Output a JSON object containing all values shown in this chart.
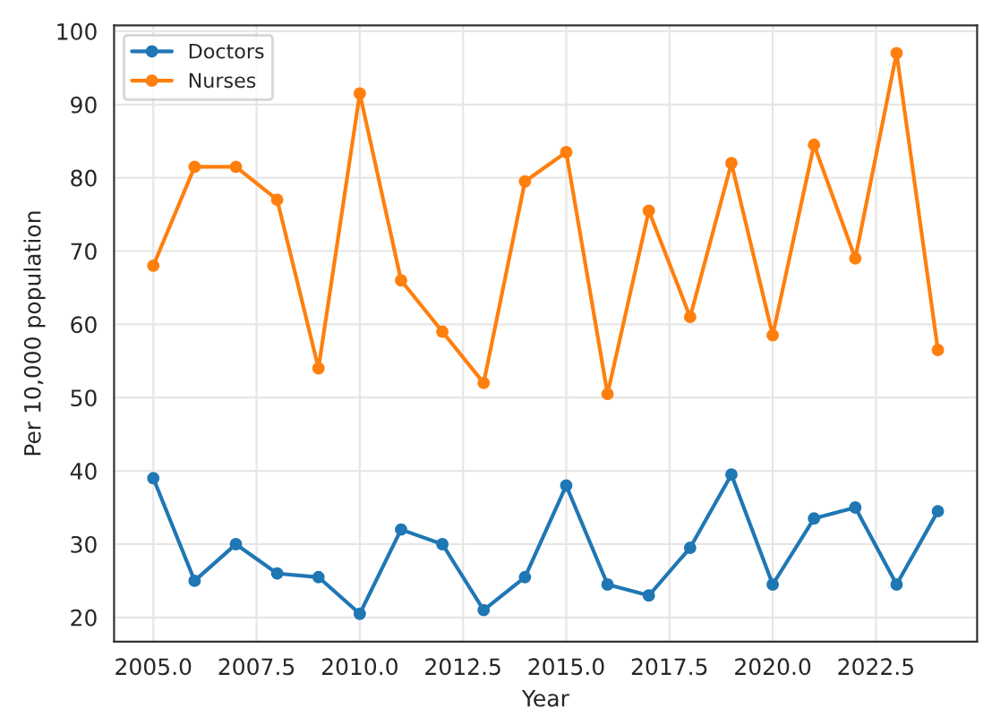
{
  "chart_data": {
    "type": "line",
    "xlabel": "Year",
    "ylabel": "Per 10,000 population",
    "x": [
      2005,
      2006,
      2007,
      2008,
      2009,
      2010,
      2011,
      2012,
      2013,
      2014,
      2015,
      2016,
      2017,
      2018,
      2019,
      2020,
      2021,
      2022,
      2023,
      2024
    ],
    "series": [
      {
        "name": "Doctors",
        "color": "#1f77b4",
        "values": [
          39,
          25,
          30,
          26,
          25.5,
          20.5,
          32,
          30,
          21,
          25.5,
          38,
          24.5,
          23,
          29.5,
          39.5,
          24.5,
          33.5,
          35,
          24.5,
          34.5
        ]
      },
      {
        "name": "Nurses",
        "color": "#ff7f0e",
        "values": [
          68,
          81.5,
          81.5,
          77,
          54,
          91.5,
          66,
          59,
          52,
          79.5,
          83.5,
          50.5,
          75.5,
          61,
          82,
          58.5,
          84.5,
          69,
          97,
          56.5
        ]
      }
    ],
    "xlim": [
      2004.05,
      2024.95
    ],
    "ylim": [
      16.7,
      100.8
    ],
    "xticks": [
      {
        "value": 2005,
        "label": "2005.0"
      },
      {
        "value": 2007.5,
        "label": "2007.5"
      },
      {
        "value": 2010,
        "label": "2010.0"
      },
      {
        "value": 2012.5,
        "label": "2012.5"
      },
      {
        "value": 2015,
        "label": "2015.0"
      },
      {
        "value": 2017.5,
        "label": "2017.5"
      },
      {
        "value": 2020,
        "label": "2020.0"
      },
      {
        "value": 2022.5,
        "label": "2022.5"
      }
    ],
    "yticks": [
      20,
      30,
      40,
      50,
      60,
      70,
      80,
      90,
      100
    ],
    "grid": true,
    "legend": "top left",
    "marker": "circle",
    "line_style": "solid"
  }
}
